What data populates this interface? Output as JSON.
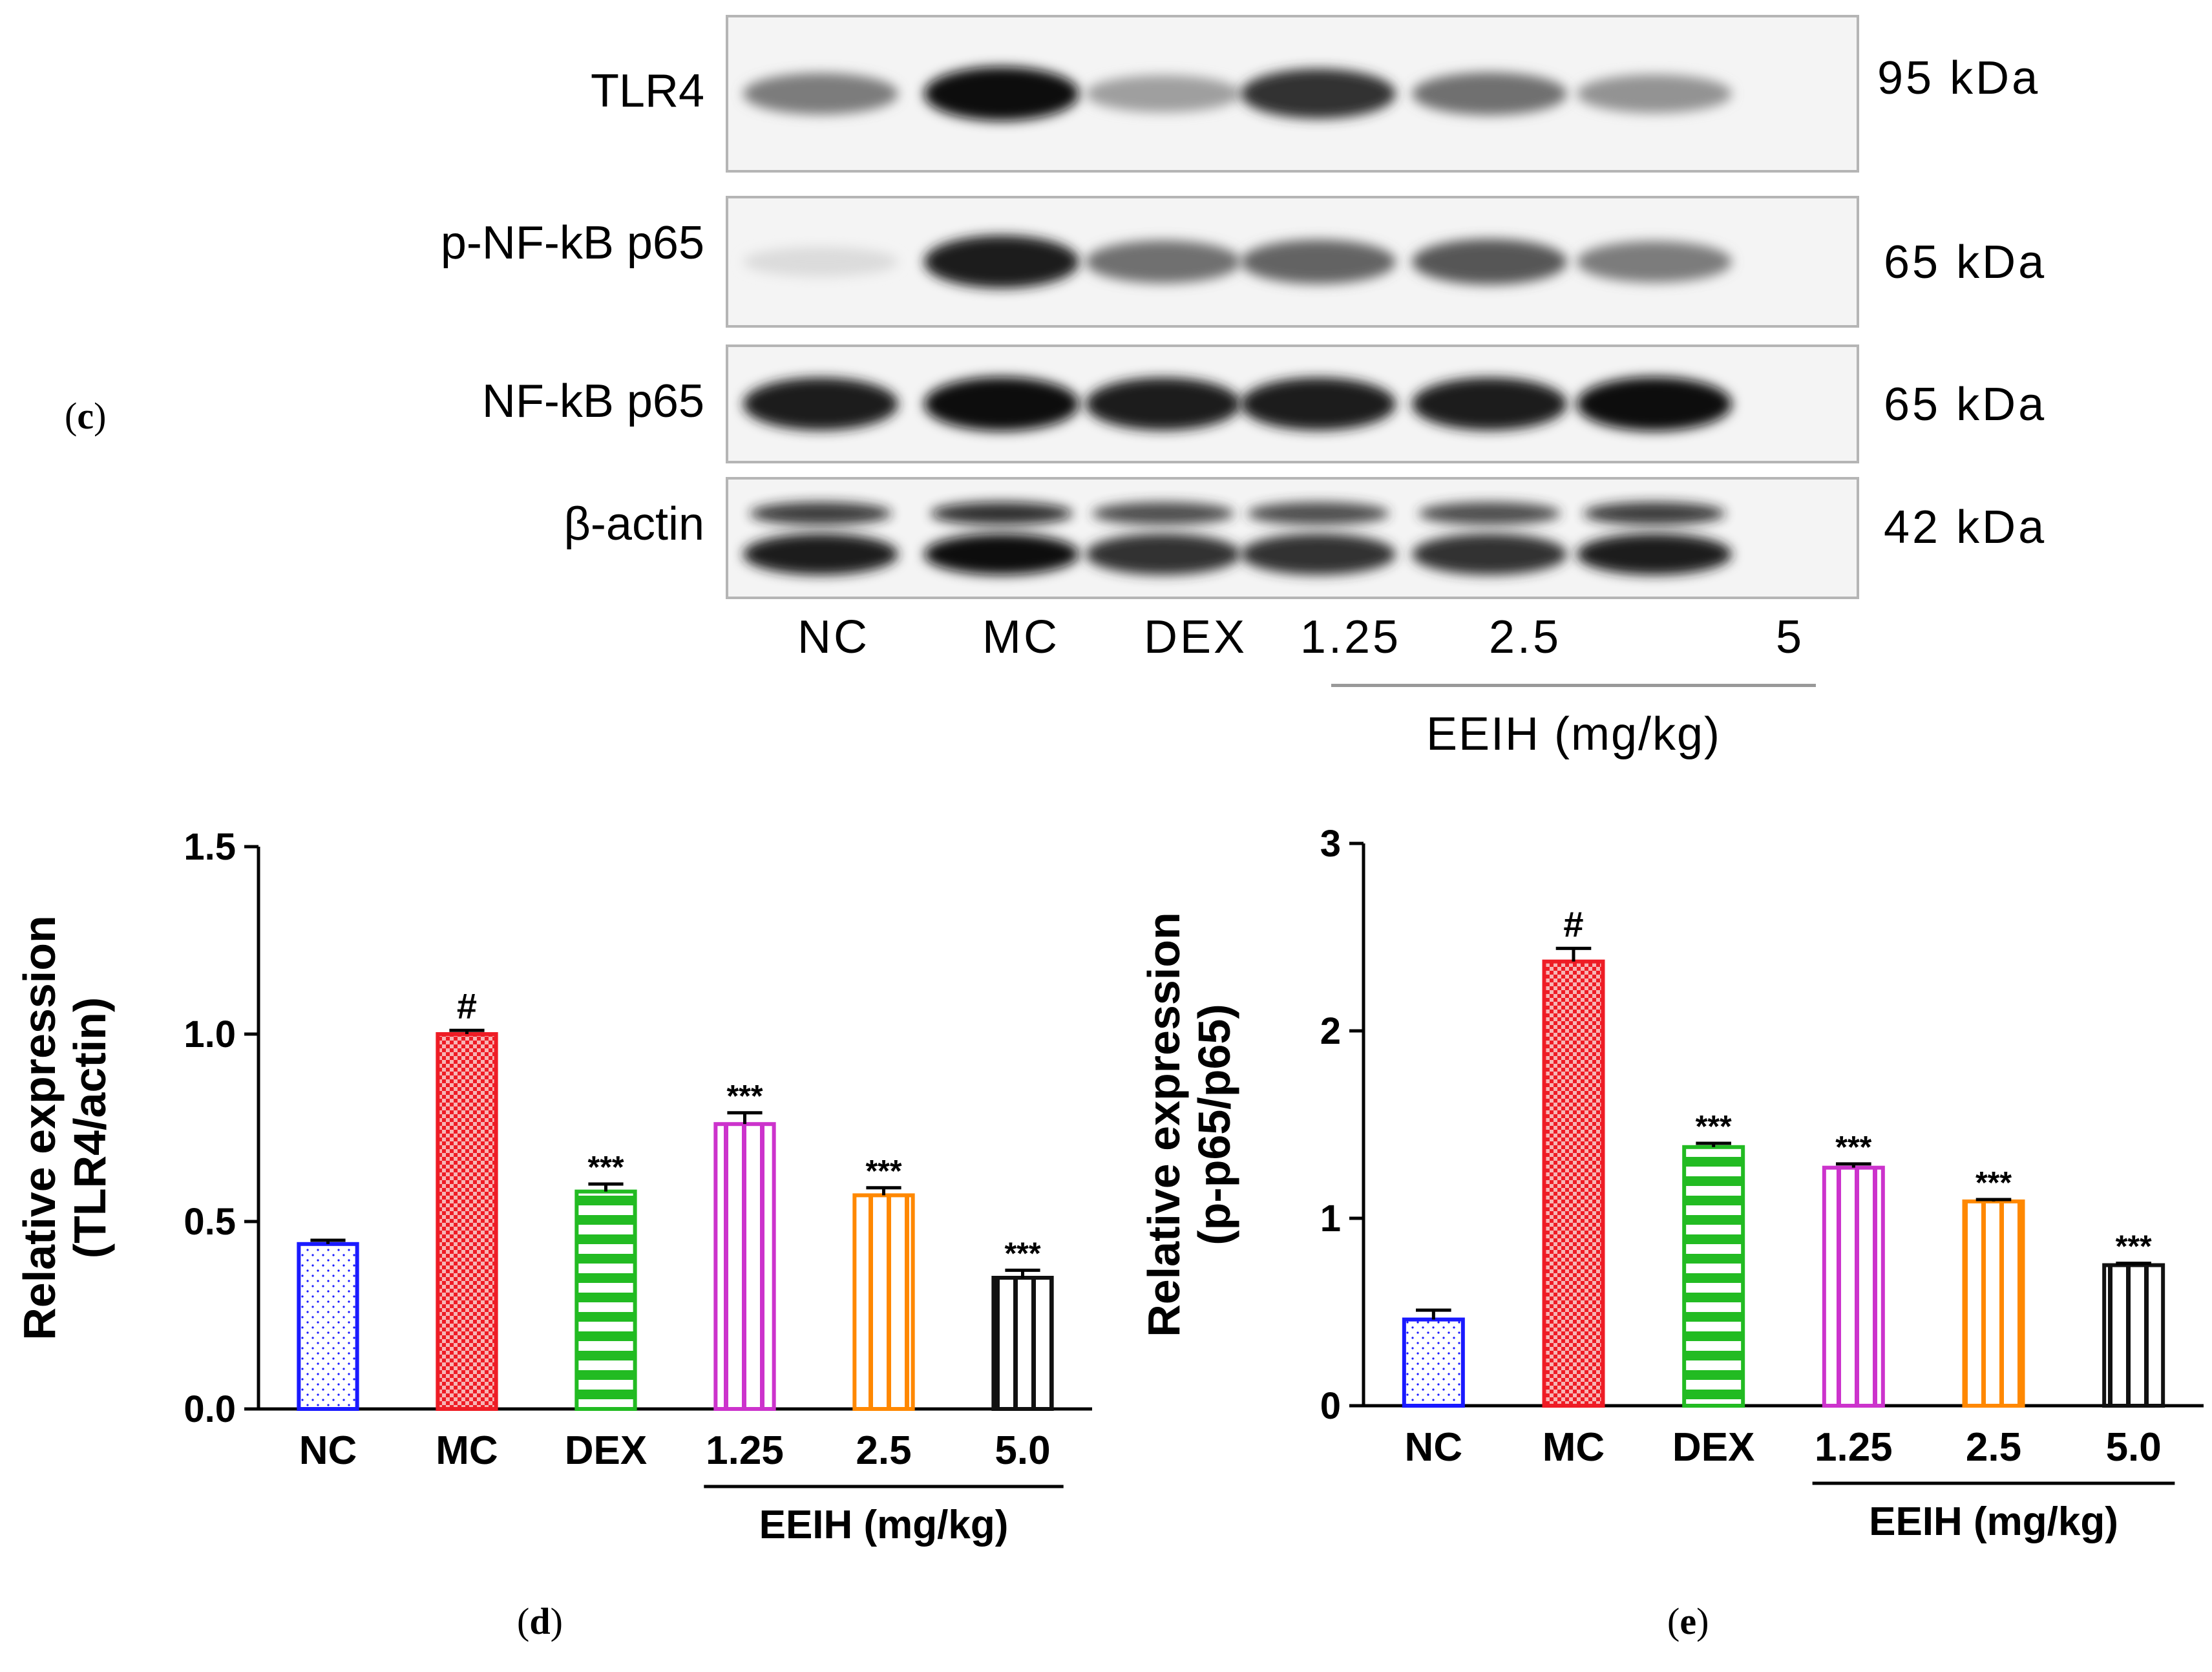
{
  "panel_c": {
    "label_letter": "c",
    "rows": [
      {
        "name": "TLR4",
        "kda": "95 kDa",
        "intensity": [
          0.55,
          1.0,
          0.4,
          0.85,
          0.6,
          0.45
        ]
      },
      {
        "name": "p-NF-kB p65",
        "kda": "65 kDa",
        "intensity": [
          0.15,
          0.95,
          0.6,
          0.65,
          0.7,
          0.55
        ]
      },
      {
        "name": "NF-kB p65",
        "kda": "65 kDa",
        "intensity": [
          0.95,
          1.0,
          0.95,
          0.95,
          0.95,
          1.0
        ]
      },
      {
        "name": "β-actin",
        "kda": "42 kDa",
        "intensity": [
          0.95,
          1.0,
          0.85,
          0.85,
          0.85,
          0.95
        ]
      }
    ],
    "lanes": [
      "NC",
      "MC",
      "DEX",
      "1.25",
      "2.5",
      "5"
    ],
    "group_label": "EEIH (mg/kg)"
  },
  "chart_data": [
    {
      "type": "bar",
      "panel": "d",
      "ylabel_lines": [
        "Relative expression",
        "(TLR4/actin)"
      ],
      "categories": [
        "NC",
        "MC",
        "DEX",
        "1.25",
        "2.5",
        "5.0"
      ],
      "values": [
        0.44,
        1.0,
        0.58,
        0.76,
        0.57,
        0.35
      ],
      "errors": [
        0.01,
        0.01,
        0.02,
        0.03,
        0.02,
        0.02
      ],
      "annotations": [
        "",
        "#",
        "***",
        "***",
        "***",
        "***"
      ],
      "ylim": [
        0,
        1.5
      ],
      "yticks": [
        "0.0",
        "0.5",
        "1.0",
        "1.5"
      ],
      "ytick_values": [
        0,
        0.5,
        1.0,
        1.5
      ],
      "group_label": "EEIH (mg/kg)",
      "colors": [
        "#1a1aff",
        "#ee1c25",
        "#22bb22",
        "#cc33cc",
        "#ff8800",
        "#111111"
      ],
      "patterns": [
        "dots",
        "checker",
        "hstripes",
        "vstripes",
        "vstripes",
        "vstripes"
      ]
    },
    {
      "type": "bar",
      "panel": "e",
      "ylabel_lines": [
        "Relative expression",
        "(p-p65/p65)"
      ],
      "categories": [
        "NC",
        "MC",
        "DEX",
        "1.25",
        "2.5",
        "5.0"
      ],
      "values": [
        0.46,
        2.37,
        1.38,
        1.27,
        1.09,
        0.75
      ],
      "errors": [
        0.05,
        0.07,
        0.02,
        0.02,
        0.01,
        0.01
      ],
      "annotations": [
        "",
        "#",
        "***",
        "***",
        "***",
        "***"
      ],
      "ylim": [
        0,
        3
      ],
      "yticks": [
        "0",
        "1",
        "2",
        "3"
      ],
      "ytick_values": [
        0,
        1,
        2,
        3
      ],
      "group_label": "EEIH (mg/kg)",
      "colors": [
        "#1a1aff",
        "#ee1c25",
        "#22bb22",
        "#cc33cc",
        "#ff8800",
        "#111111"
      ],
      "patterns": [
        "dots",
        "checker",
        "hstripes",
        "vstripes",
        "vstripes",
        "vstripes"
      ]
    }
  ],
  "panel_labels": {
    "c": "c",
    "d": "d",
    "e": "e"
  }
}
